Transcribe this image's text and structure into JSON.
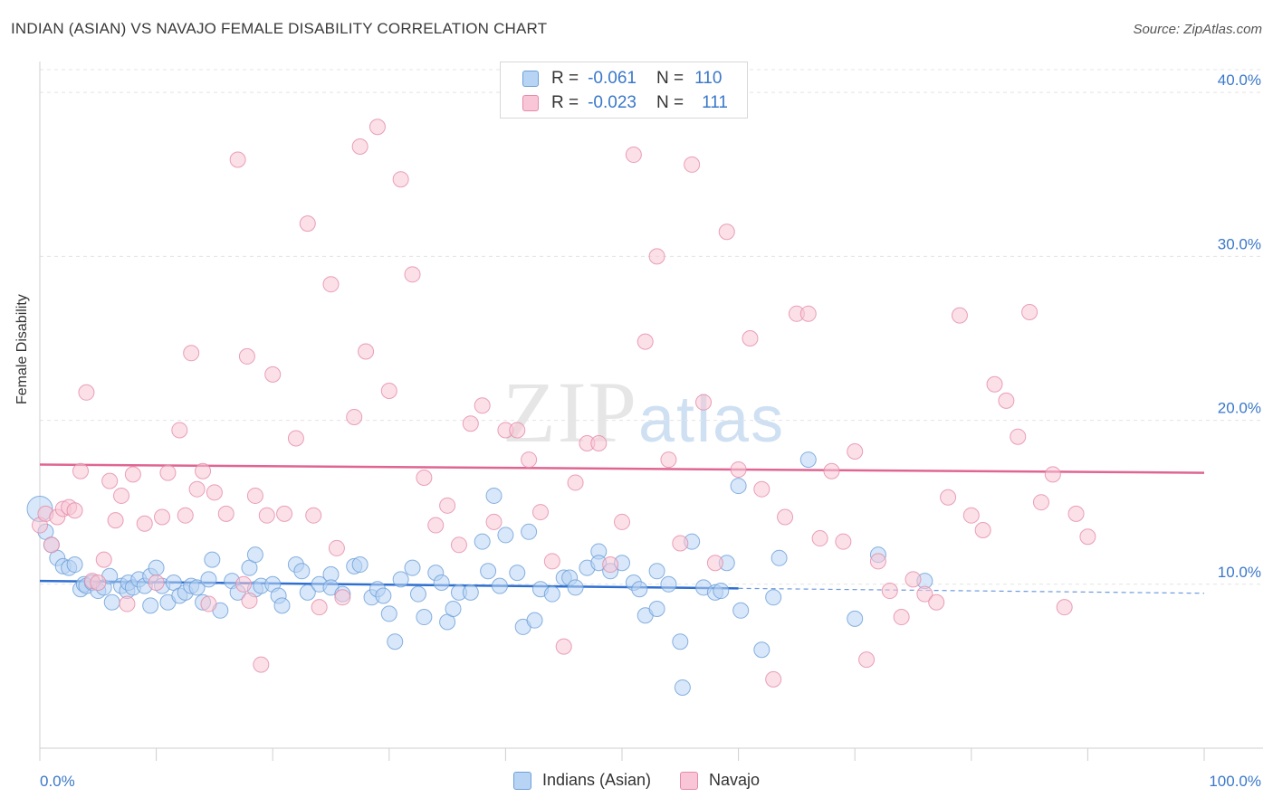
{
  "title": "INDIAN (ASIAN) VS NAVAJO FEMALE DISABILITY CORRELATION CHART",
  "source": "Source: ZipAtlas.com",
  "watermark": {
    "zip": "ZIP",
    "atlas": "atlas"
  },
  "legend": {
    "r_label": "R =",
    "n_label": "N =",
    "series": [
      {
        "name": "Indians (Asian)",
        "r": "-0.061",
        "n": "110",
        "fill": "#b8d4f4",
        "stroke": "#6c9fd8"
      },
      {
        "name": "Navajo",
        "r": "-0.023",
        "n": "111",
        "fill": "#f8c6d6",
        "stroke": "#e58aa8"
      }
    ]
  },
  "chart_data": {
    "type": "scatter",
    "title": "INDIAN (ASIAN) VS NAVAJO FEMALE DISABILITY CORRELATION CHART",
    "xlabel": "",
    "ylabel": "Female Disability",
    "xlim": [
      0,
      100
    ],
    "ylim": [
      0,
      41.5
    ],
    "x_tick_labels": [
      "0.0%",
      "100.0%"
    ],
    "y_ticks": [
      10,
      20,
      30,
      40
    ],
    "y_tick_labels": [
      "10.0%",
      "20.0%",
      "30.0%",
      "40.0%"
    ],
    "grid": true,
    "series": [
      {
        "name": "Indians (Asian)",
        "color": "#6c9fd8",
        "fill": "#b8d4f4",
        "trend": {
          "x0": 0,
          "y0": 10.2,
          "x1": 60,
          "y1": 9.75,
          "dash_x1": 100,
          "dash_y1": 9.45,
          "color": "#2f6fcf"
        },
        "points": [
          [
            0,
            14.6
          ],
          [
            0.5,
            13.2
          ],
          [
            1,
            12.4
          ],
          [
            1.5,
            11.6
          ],
          [
            2,
            11.1
          ],
          [
            2.5,
            11.0
          ],
          [
            3,
            11.2
          ],
          [
            3.5,
            9.7
          ],
          [
            3.8,
            10.0
          ],
          [
            4,
            9.9
          ],
          [
            4.5,
            10.1
          ],
          [
            5,
            9.6
          ],
          [
            5.5,
            9.8
          ],
          [
            6,
            10.5
          ],
          [
            6.2,
            8.9
          ],
          [
            7,
            9.9
          ],
          [
            7.5,
            9.6
          ],
          [
            7.6,
            10.1
          ],
          [
            8,
            9.8
          ],
          [
            8.5,
            10.3
          ],
          [
            9,
            9.9
          ],
          [
            9.5,
            8.7
          ],
          [
            9.5,
            10.5
          ],
          [
            10,
            11.0
          ],
          [
            10.5,
            9.9
          ],
          [
            11,
            8.9
          ],
          [
            11.5,
            10.1
          ],
          [
            12,
            9.3
          ],
          [
            12.5,
            9.5
          ],
          [
            13,
            9.9
          ],
          [
            13.5,
            9.8
          ],
          [
            14,
            8.9
          ],
          [
            14.5,
            10.3
          ],
          [
            14.8,
            11.5
          ],
          [
            15.5,
            8.4
          ],
          [
            16.5,
            10.2
          ],
          [
            17,
            9.5
          ],
          [
            18,
            11.0
          ],
          [
            18.5,
            9.7
          ],
          [
            18.5,
            11.8
          ],
          [
            19,
            9.9
          ],
          [
            20,
            10.0
          ],
          [
            20.5,
            9.3
          ],
          [
            20.8,
            8.7
          ],
          [
            22,
            11.2
          ],
          [
            22.5,
            10.8
          ],
          [
            23,
            9.5
          ],
          [
            24,
            10.0
          ],
          [
            25,
            10.6
          ],
          [
            25,
            9.8
          ],
          [
            26,
            9.4
          ],
          [
            27,
            11.1
          ],
          [
            27.5,
            11.2
          ],
          [
            28.5,
            9.2
          ],
          [
            29,
            9.7
          ],
          [
            29.5,
            9.3
          ],
          [
            30,
            8.2
          ],
          [
            30.5,
            6.5
          ],
          [
            31,
            10.3
          ],
          [
            32,
            11.0
          ],
          [
            32.5,
            9.4
          ],
          [
            33,
            8.0
          ],
          [
            34,
            10.7
          ],
          [
            34.5,
            10.1
          ],
          [
            35,
            7.7
          ],
          [
            35.5,
            8.5
          ],
          [
            36,
            9.5
          ],
          [
            37,
            9.5
          ],
          [
            38,
            12.6
          ],
          [
            38.5,
            10.8
          ],
          [
            39,
            15.4
          ],
          [
            39.5,
            9.9
          ],
          [
            40,
            13.0
          ],
          [
            41,
            10.7
          ],
          [
            41.5,
            7.4
          ],
          [
            42,
            13.2
          ],
          [
            42.5,
            7.8
          ],
          [
            43,
            9.7
          ],
          [
            44,
            9.4
          ],
          [
            45,
            10.4
          ],
          [
            45.5,
            10.4
          ],
          [
            46,
            9.8
          ],
          [
            47,
            11.0
          ],
          [
            48,
            12.0
          ],
          [
            48,
            11.3
          ],
          [
            49,
            10.8
          ],
          [
            50,
            11.3
          ],
          [
            51,
            10.1
          ],
          [
            51.5,
            9.7
          ],
          [
            52,
            8.1
          ],
          [
            53,
            10.8
          ],
          [
            53,
            8.5
          ],
          [
            54,
            10.0
          ],
          [
            55,
            6.5
          ],
          [
            55.2,
            3.7
          ],
          [
            56,
            12.6
          ],
          [
            57,
            9.8
          ],
          [
            58,
            9.5
          ],
          [
            58.5,
            9.6
          ],
          [
            59,
            11.3
          ],
          [
            60,
            16.0
          ],
          [
            60.2,
            8.4
          ],
          [
            62,
            6.0
          ],
          [
            63,
            9.2
          ],
          [
            63.5,
            11.6
          ],
          [
            66,
            17.6
          ],
          [
            70,
            7.9
          ],
          [
            72,
            11.8
          ],
          [
            76,
            10.2
          ]
        ]
      },
      {
        "name": "Navajo",
        "color": "#e58aa8",
        "fill": "#f8c6d6",
        "trend": {
          "x0": 0,
          "y0": 17.3,
          "x1": 100,
          "y1": 16.8,
          "color": "#e06592"
        },
        "points": [
          [
            0,
            13.6
          ],
          [
            0.5,
            14.3
          ],
          [
            1,
            12.4
          ],
          [
            1.5,
            14.1
          ],
          [
            2,
            14.6
          ],
          [
            2.5,
            14.7
          ],
          [
            3,
            14.5
          ],
          [
            3.5,
            16.9
          ],
          [
            4,
            21.7
          ],
          [
            4.5,
            10.2
          ],
          [
            5,
            10.1
          ],
          [
            5.5,
            11.5
          ],
          [
            6,
            16.3
          ],
          [
            6.5,
            13.9
          ],
          [
            7,
            15.4
          ],
          [
            7.5,
            8.8
          ],
          [
            8,
            16.7
          ],
          [
            9,
            13.7
          ],
          [
            10,
            10.1
          ],
          [
            10.5,
            14.1
          ],
          [
            11,
            16.8
          ],
          [
            12,
            19.4
          ],
          [
            12.5,
            14.2
          ],
          [
            13,
            24.1
          ],
          [
            13.5,
            15.8
          ],
          [
            14,
            16.9
          ],
          [
            14.5,
            8.8
          ],
          [
            15,
            15.6
          ],
          [
            16,
            14.3
          ],
          [
            17,
            35.9
          ],
          [
            17.5,
            10.0
          ],
          [
            17.8,
            23.9
          ],
          [
            18,
            9.0
          ],
          [
            18.5,
            15.4
          ],
          [
            19,
            5.1
          ],
          [
            19.5,
            14.2
          ],
          [
            20,
            22.8
          ],
          [
            21,
            14.3
          ],
          [
            22,
            18.9
          ],
          [
            23,
            32.0
          ],
          [
            23.5,
            14.2
          ],
          [
            24,
            8.6
          ],
          [
            25,
            28.3
          ],
          [
            25.5,
            12.2
          ],
          [
            26,
            9.2
          ],
          [
            27,
            20.2
          ],
          [
            27.5,
            36.7
          ],
          [
            28,
            24.2
          ],
          [
            29,
            37.9
          ],
          [
            30,
            21.8
          ],
          [
            31,
            34.7
          ],
          [
            32,
            28.9
          ],
          [
            33,
            16.5
          ],
          [
            34,
            13.6
          ],
          [
            35,
            14.8
          ],
          [
            36,
            12.4
          ],
          [
            37,
            19.8
          ],
          [
            38,
            20.9
          ],
          [
            39,
            13.8
          ],
          [
            40,
            19.4
          ],
          [
            41,
            19.4
          ],
          [
            42,
            17.6
          ],
          [
            43,
            14.4
          ],
          [
            44,
            11.4
          ],
          [
            45,
            6.2
          ],
          [
            46,
            16.2
          ],
          [
            47,
            18.6
          ],
          [
            48,
            18.6
          ],
          [
            49,
            11.2
          ],
          [
            50,
            13.8
          ],
          [
            51,
            36.2
          ],
          [
            52,
            24.8
          ],
          [
            53,
            30.0
          ],
          [
            54,
            17.6
          ],
          [
            55,
            12.5
          ],
          [
            56,
            35.6
          ],
          [
            57,
            21.1
          ],
          [
            58,
            11.3
          ],
          [
            59,
            31.5
          ],
          [
            60,
            17.0
          ],
          [
            61,
            25.0
          ],
          [
            62,
            15.8
          ],
          [
            63,
            4.2
          ],
          [
            64,
            14.1
          ],
          [
            65,
            26.5
          ],
          [
            66,
            26.5
          ],
          [
            67,
            12.8
          ],
          [
            68,
            16.9
          ],
          [
            69,
            12.6
          ],
          [
            70,
            18.1
          ],
          [
            71,
            5.4
          ],
          [
            72,
            11.4
          ],
          [
            73,
            9.6
          ],
          [
            74,
            8.0
          ],
          [
            75,
            10.3
          ],
          [
            76,
            9.4
          ],
          [
            77,
            8.9
          ],
          [
            78,
            15.3
          ],
          [
            79,
            26.4
          ],
          [
            80,
            14.2
          ],
          [
            81,
            13.3
          ],
          [
            82,
            22.2
          ],
          [
            83,
            21.2
          ],
          [
            84,
            19.0
          ],
          [
            85,
            26.6
          ],
          [
            86,
            15.0
          ],
          [
            87,
            16.7
          ],
          [
            88,
            8.6
          ],
          [
            89,
            14.3
          ],
          [
            90,
            12.9
          ]
        ]
      }
    ]
  }
}
